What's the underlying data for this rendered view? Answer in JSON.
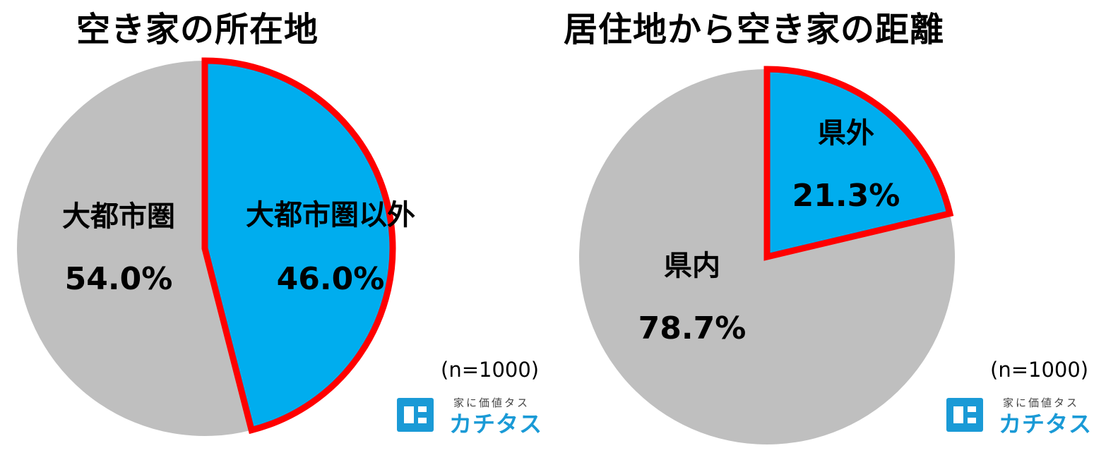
{
  "chart_data": [
    {
      "type": "pie",
      "title": "空き家の所在地",
      "slices": [
        {
          "label": "大都市圏",
          "value": 54.0,
          "display": "54.0%",
          "color": "#bfbfbf",
          "highlighted": false
        },
        {
          "label": "大都市圏以外",
          "value": 46.0,
          "display": "46.0%",
          "color": "#00adee",
          "highlighted": true
        }
      ],
      "start_angle_deg": 0,
      "direction": "clockwise",
      "highlight_stroke_color": "#ff0000",
      "note": "(n=1000)"
    },
    {
      "type": "pie",
      "title": "居住地から空き家の距離",
      "slices": [
        {
          "label": "県内",
          "value": 78.7,
          "display": "78.7%",
          "color": "#bfbfbf",
          "highlighted": false
        },
        {
          "label": "県外",
          "value": 21.3,
          "display": "21.3%",
          "color": "#00adee",
          "highlighted": true
        }
      ],
      "start_angle_deg": 0,
      "direction": "clockwise",
      "highlight_stroke_color": "#ff0000",
      "note": "(n=1000)"
    }
  ],
  "logo": {
    "tagline": "家に価値タス",
    "name": "カチタス",
    "color": "#1a9ad6"
  }
}
